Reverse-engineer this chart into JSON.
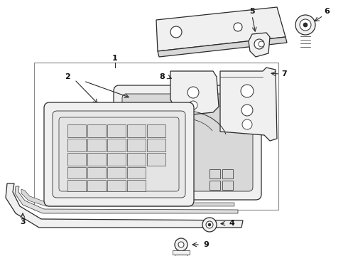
{
  "bg_color": "#ffffff",
  "line_color": "#2a2a2a",
  "gray_line": "#888888",
  "fill_light": "#f0f0f0",
  "fill_mid": "#d8d8d8",
  "fill_dark": "#c0c0c0",
  "label_color": "#111111"
}
